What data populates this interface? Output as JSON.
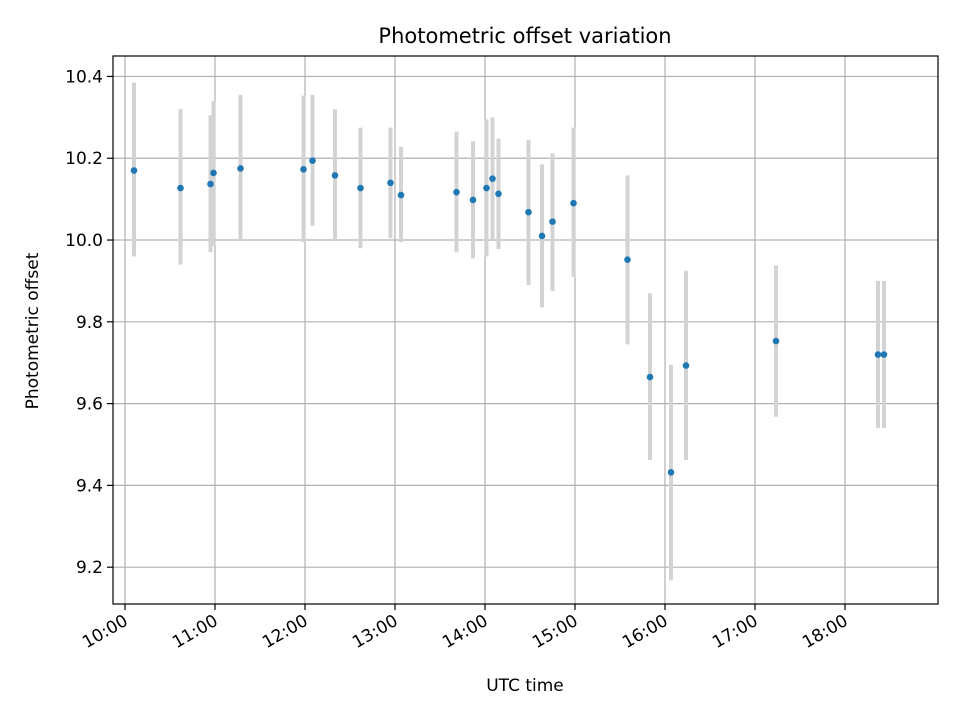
{
  "chart_data": {
    "type": "scatter",
    "title": "Photometric offset variation",
    "xlabel": "UTC time",
    "ylabel": "Photometric offset",
    "x_ticks": [
      "10:00",
      "11:00",
      "12:00",
      "13:00",
      "14:00",
      "15:00",
      "16:00",
      "17:00",
      "18:00"
    ],
    "y_ticks": [
      "9.2",
      "9.4",
      "9.6",
      "9.8",
      "10.0",
      "10.2",
      "10.4"
    ],
    "xlim": [
      "09:52",
      "19:02"
    ],
    "ylim": [
      9.11,
      10.45
    ],
    "grid": true,
    "colors": {
      "point": "#1f77b4",
      "errorbar": "#d3d3d3",
      "grid": "#b0b0b0"
    },
    "points": [
      {
        "x": "10:06",
        "y": 10.17,
        "ylow": 9.96,
        "yhigh": 10.385
      },
      {
        "x": "10:37",
        "y": 10.127,
        "ylow": 9.94,
        "yhigh": 10.32
      },
      {
        "x": "10:57",
        "y": 10.137,
        "ylow": 9.97,
        "yhigh": 10.305
      },
      {
        "x": "10:59",
        "y": 10.164,
        "ylow": 9.985,
        "yhigh": 10.34
      },
      {
        "x": "11:17",
        "y": 10.175,
        "ylow": 10.0,
        "yhigh": 10.355
      },
      {
        "x": "11:59",
        "y": 10.173,
        "ylow": 9.995,
        "yhigh": 10.353
      },
      {
        "x": "12:05",
        "y": 10.194,
        "ylow": 10.035,
        "yhigh": 10.355
      },
      {
        "x": "12:20",
        "y": 10.158,
        "ylow": 10.0,
        "yhigh": 10.32
      },
      {
        "x": "12:37",
        "y": 10.127,
        "ylow": 9.98,
        "yhigh": 10.275
      },
      {
        "x": "12:57",
        "y": 10.14,
        "ylow": 10.005,
        "yhigh": 10.275
      },
      {
        "x": "13:04",
        "y": 10.11,
        "ylow": 9.995,
        "yhigh": 10.228
      },
      {
        "x": "13:41",
        "y": 10.117,
        "ylow": 9.97,
        "yhigh": 10.265
      },
      {
        "x": "13:52",
        "y": 10.098,
        "ylow": 9.955,
        "yhigh": 10.242
      },
      {
        "x": "14:01",
        "y": 10.127,
        "ylow": 9.96,
        "yhigh": 10.295
      },
      {
        "x": "14:05",
        "y": 10.15,
        "ylow": 10.0,
        "yhigh": 10.3
      },
      {
        "x": "14:09",
        "y": 10.113,
        "ylow": 9.978,
        "yhigh": 10.248
      },
      {
        "x": "14:29",
        "y": 10.068,
        "ylow": 9.89,
        "yhigh": 10.245
      },
      {
        "x": "14:38",
        "y": 10.01,
        "ylow": 9.835,
        "yhigh": 10.185
      },
      {
        "x": "14:45",
        "y": 10.045,
        "ylow": 9.875,
        "yhigh": 10.212
      },
      {
        "x": "14:59",
        "y": 10.09,
        "ylow": 9.91,
        "yhigh": 10.275
      },
      {
        "x": "15:35",
        "y": 9.952,
        "ylow": 9.745,
        "yhigh": 10.158
      },
      {
        "x": "15:50",
        "y": 9.665,
        "ylow": 9.462,
        "yhigh": 9.87
      },
      {
        "x": "16:04",
        "y": 9.432,
        "ylow": 9.168,
        "yhigh": 9.695
      },
      {
        "x": "16:14",
        "y": 9.693,
        "ylow": 9.462,
        "yhigh": 9.925
      },
      {
        "x": "17:14",
        "y": 9.753,
        "ylow": 9.568,
        "yhigh": 9.938
      },
      {
        "x": "18:22",
        "y": 9.72,
        "ylow": 9.54,
        "yhigh": 9.9
      },
      {
        "x": "18:26",
        "y": 9.72,
        "ylow": 9.54,
        "yhigh": 9.9
      }
    ]
  }
}
